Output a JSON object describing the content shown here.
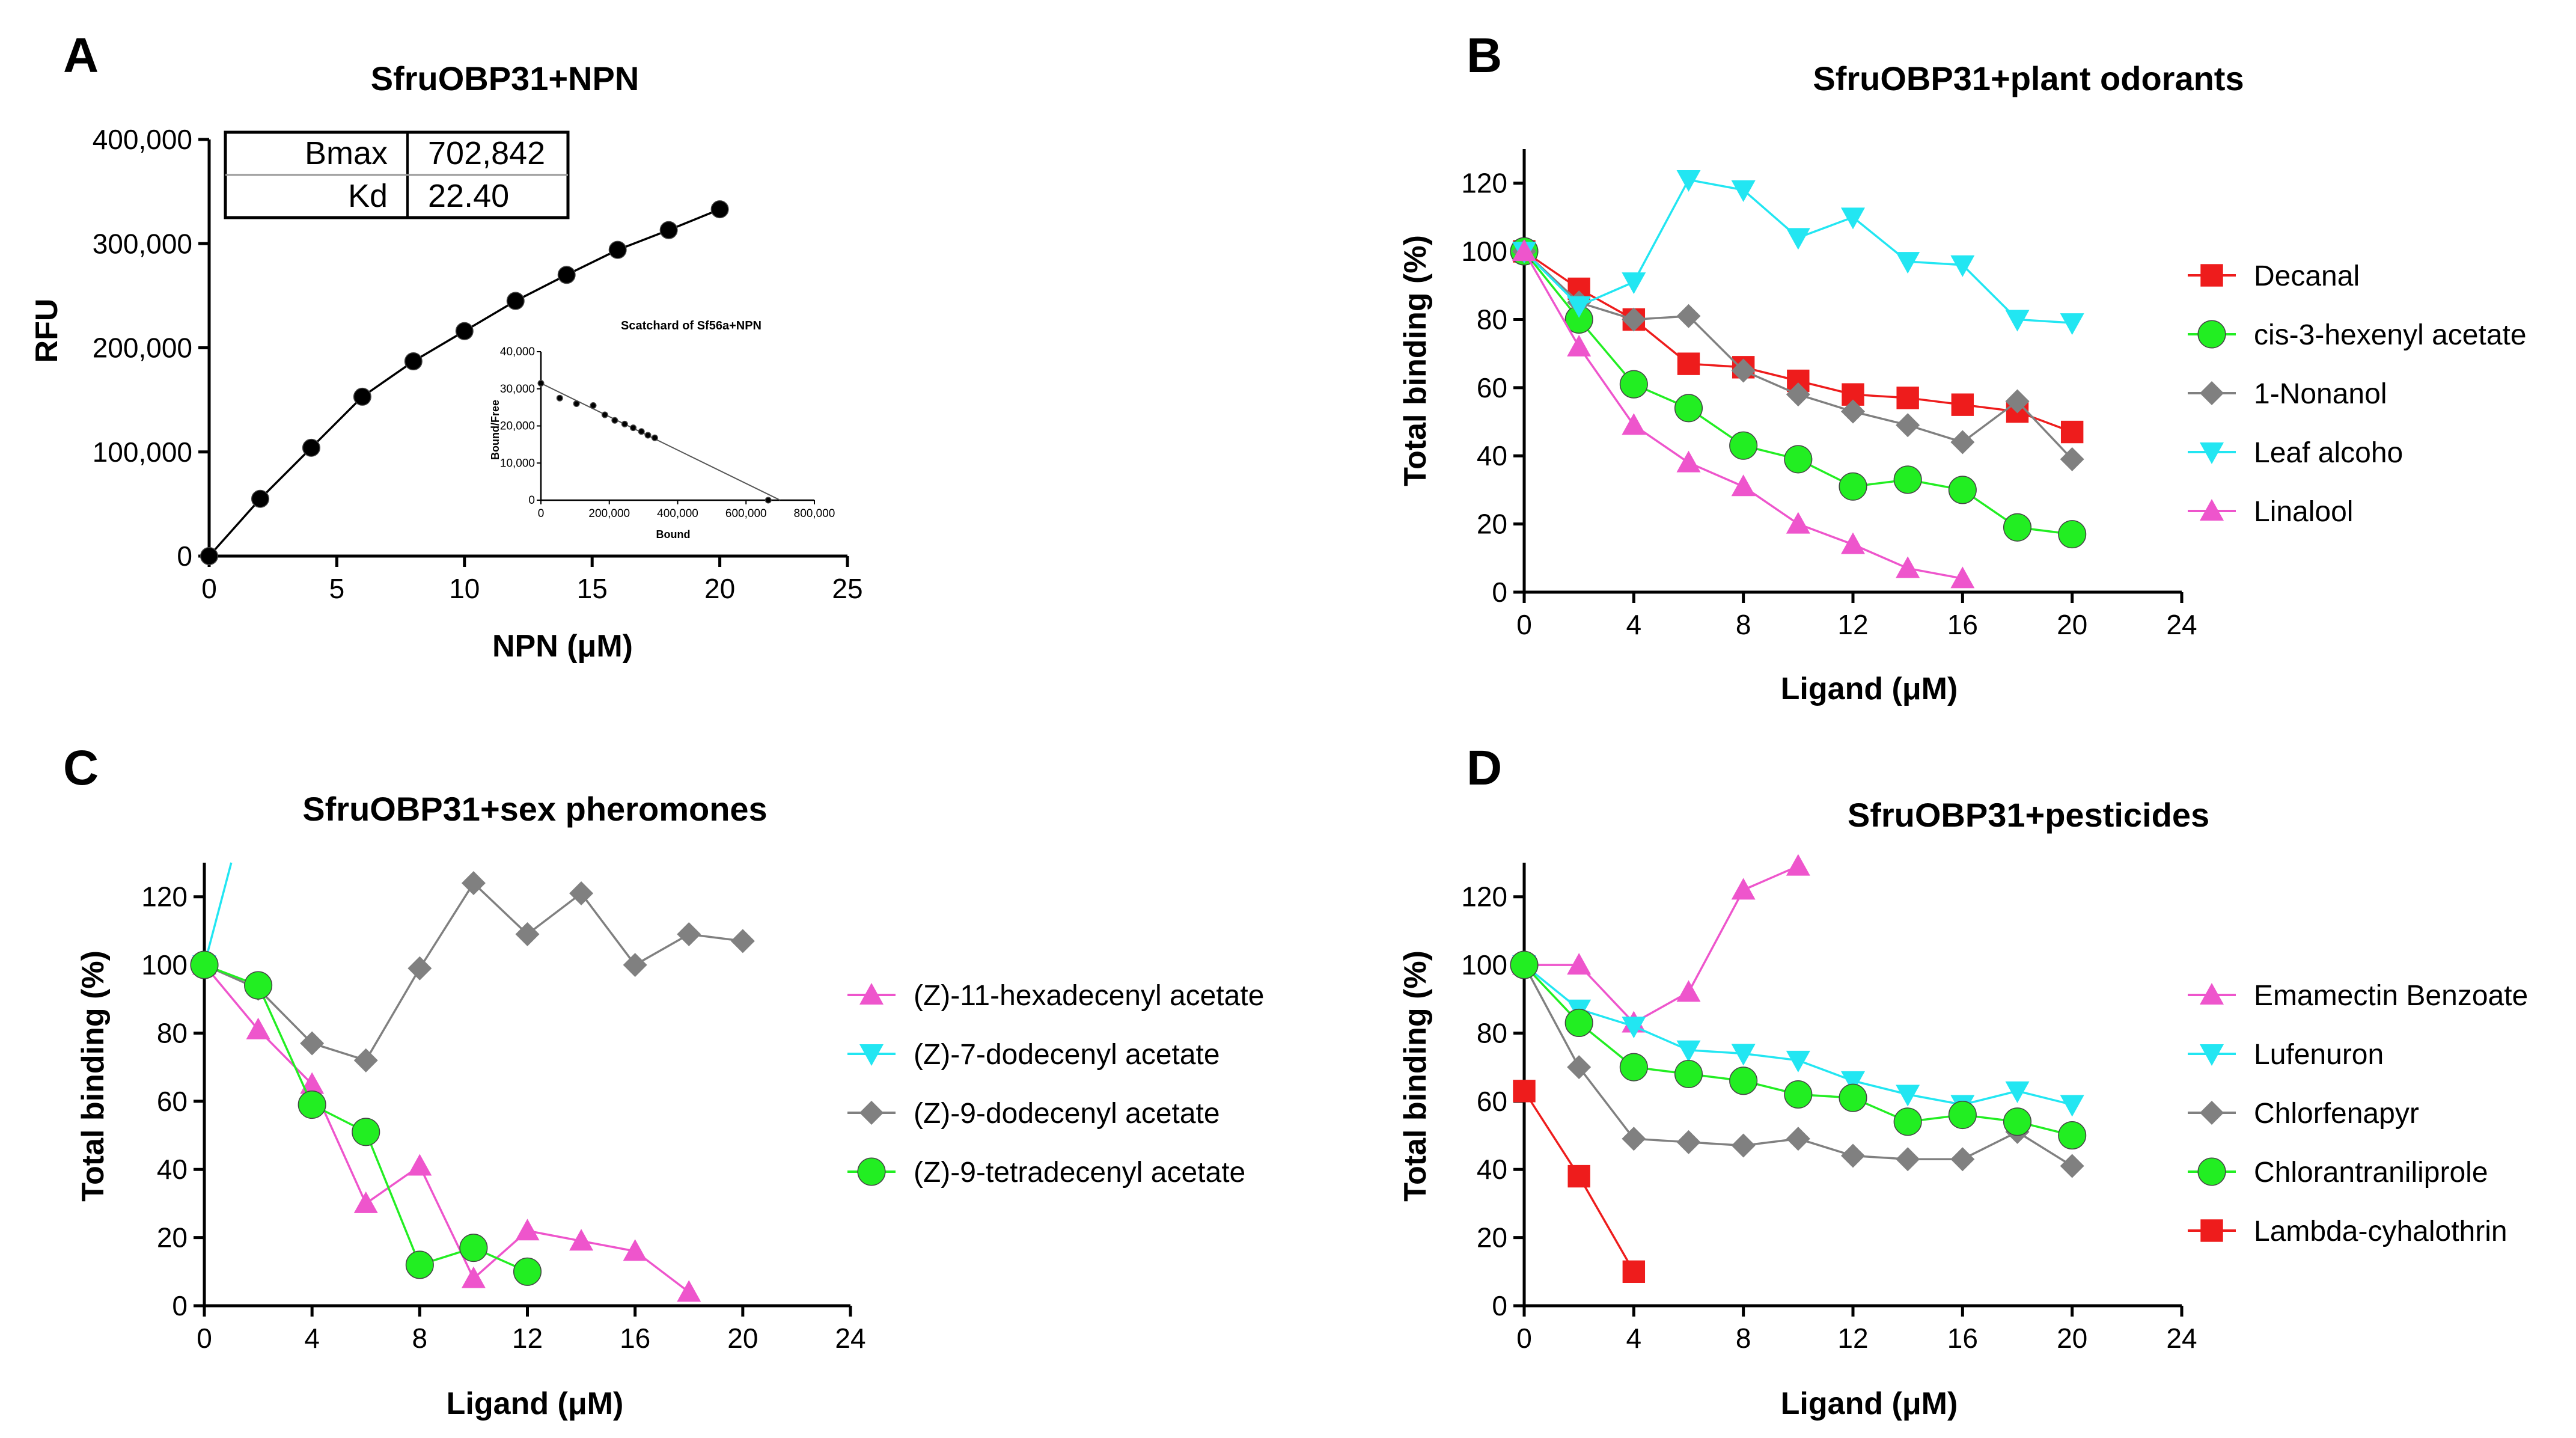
{
  "chart_data": [
    {
      "panel": "A",
      "type": "scatter",
      "title": "SfruOBP31+NPN",
      "xlabel": "NPN (μM)",
      "ylabel": "RFU",
      "xlim": [
        0,
        25
      ],
      "ylim": [
        0,
        400000
      ],
      "xticks": [
        0,
        5,
        10,
        15,
        20,
        25
      ],
      "yticks": [
        0,
        100000,
        200000,
        300000,
        400000
      ],
      "xtick_labels": [
        "0",
        "5",
        "10",
        "15",
        "20",
        "25"
      ],
      "ytick_labels": [
        "0",
        "100,000",
        "200,000",
        "300,000",
        "400,000"
      ],
      "x": [
        0,
        2,
        4,
        6,
        8,
        10,
        12,
        14,
        16,
        18,
        20
      ],
      "y": [
        0,
        55000,
        104000,
        153000,
        187000,
        216000,
        245000,
        270000,
        294000,
        313000,
        333000
      ],
      "fit_table": [
        {
          "label": "Bmax",
          "value": "702,842"
        },
        {
          "label": "Kd",
          "value": "22.40"
        }
      ],
      "inset": {
        "type": "scatter",
        "title": "Scatchard of Sf56a+NPN",
        "xlabel": "Bound",
        "ylabel": "Bound/Free",
        "xlim": [
          0,
          800000
        ],
        "ylim": [
          0,
          40000
        ],
        "xtick_labels": [
          "0",
          "200,000",
          "400,000",
          "600,000",
          "800,000"
        ],
        "ytick_labels": [
          "0",
          "10,000",
          "20,000",
          "30,000",
          "40,000"
        ],
        "x": [
          0,
          55000,
          104000,
          153000,
          187000,
          216000,
          245000,
          270000,
          294000,
          313000,
          333000,
          665000
        ],
        "y": [
          31500,
          27500,
          26000,
          25500,
          23000,
          21500,
          20500,
          19500,
          18500,
          17500,
          16800,
          0
        ],
        "line": {
          "x": [
            0,
            700000
          ],
          "y": [
            31500,
            0
          ]
        }
      }
    },
    {
      "panel": "B",
      "type": "line",
      "title": "SfruOBP31+plant odorants",
      "xlabel": "Ligand (μM)",
      "ylabel": "Total binding (%)",
      "xlim": [
        0,
        24
      ],
      "ylim": [
        0,
        130
      ],
      "xticks": [
        0,
        4,
        8,
        12,
        16,
        20,
        24
      ],
      "yticks": [
        0,
        20,
        40,
        60,
        80,
        100,
        120
      ],
      "xtick_labels": [
        "0",
        "4",
        "8",
        "12",
        "16",
        "20",
        "24"
      ],
      "ytick_labels": [
        "0",
        "20",
        "40",
        "60",
        "80",
        "100",
        "120"
      ],
      "series": [
        {
          "name": "Decanal",
          "color": "#ee1c1c",
          "marker": "square",
          "x": [
            0,
            2,
            4,
            6,
            8,
            10,
            12,
            14,
            16,
            18,
            20
          ],
          "y": [
            100,
            89,
            80,
            67,
            66,
            62,
            58,
            57,
            55,
            53,
            47
          ]
        },
        {
          "name": "cis-3-hexenyl acetate",
          "color": "#22ee22",
          "marker": "circle",
          "x": [
            0,
            2,
            4,
            6,
            8,
            10,
            12,
            14,
            16,
            18,
            20
          ],
          "y": [
            100,
            80,
            61,
            54,
            43,
            39,
            31,
            33,
            30,
            19,
            17
          ]
        },
        {
          "name": "1-Nonanol",
          "color": "#808080",
          "marker": "diamond",
          "x": [
            0,
            2,
            4,
            6,
            8,
            10,
            12,
            14,
            16,
            18,
            20
          ],
          "y": [
            100,
            85,
            80,
            81,
            65,
            58,
            53,
            49,
            44,
            56,
            39
          ]
        },
        {
          "name": "Leaf alcoho",
          "color": "#22e6f2",
          "marker": "triangle-down",
          "x": [
            0,
            2,
            4,
            6,
            8,
            10,
            12,
            14,
            16,
            18,
            20
          ],
          "y": [
            100,
            84,
            91,
            121,
            118,
            104,
            110,
            97,
            96,
            80,
            79
          ]
        },
        {
          "name": "Linalool",
          "color": "#ee55cc",
          "marker": "triangle-up",
          "x": [
            0,
            2,
            4,
            6,
            8,
            10,
            12,
            14,
            16
          ],
          "y": [
            100,
            72,
            49,
            38,
            31,
            20,
            14,
            7,
            4
          ]
        }
      ]
    },
    {
      "panel": "C",
      "type": "line",
      "title": "SfruOBP31+sex pheromones",
      "xlabel": "Ligand (μM)",
      "ylabel": "Total binding (%)",
      "xlim": [
        0,
        24
      ],
      "ylim": [
        0,
        130
      ],
      "xticks": [
        0,
        4,
        8,
        12,
        16,
        20,
        24
      ],
      "yticks": [
        0,
        20,
        40,
        60,
        80,
        100,
        120
      ],
      "xtick_labels": [
        "0",
        "4",
        "8",
        "12",
        "16",
        "20",
        "24"
      ],
      "ytick_labels": [
        "0",
        "20",
        "40",
        "60",
        "80",
        "100",
        "120"
      ],
      "series": [
        {
          "name": "(Z)-11-hexadecenyl acetate",
          "color": "#ee55cc",
          "marker": "triangle-up",
          "x": [
            0,
            2,
            4,
            6,
            8,
            10,
            12,
            14,
            16,
            18
          ],
          "y": [
            100,
            81,
            65,
            30,
            41,
            8,
            22,
            19,
            16,
            4
          ]
        },
        {
          "name": "(Z)-7-dodecenyl acetate",
          "color": "#22e6f2",
          "marker": "triangle-down",
          "x": [
            0,
            1
          ],
          "y": [
            100,
            130
          ]
        },
        {
          "name": "(Z)-9-dodecenyl acetate",
          "color": "#808080",
          "marker": "diamond",
          "x": [
            0,
            2,
            4,
            6,
            8,
            10,
            12,
            14,
            16,
            18,
            20
          ],
          "y": [
            100,
            93,
            77,
            72,
            99,
            124,
            109,
            121,
            100,
            109,
            107
          ]
        },
        {
          "name": "(Z)-9-tetradecenyl acetate",
          "color": "#22ee22",
          "marker": "circle",
          "x": [
            0,
            2,
            4,
            6,
            8,
            10,
            12
          ],
          "y": [
            100,
            94,
            59,
            51,
            12,
            17,
            10
          ]
        }
      ]
    },
    {
      "panel": "D",
      "type": "line",
      "title": "SfruOBP31+pesticides",
      "xlabel": "Ligand (μM)",
      "ylabel": "Total binding (%)",
      "xlim": [
        0,
        24
      ],
      "ylim": [
        0,
        130
      ],
      "xticks": [
        0,
        4,
        8,
        12,
        16,
        20,
        24
      ],
      "yticks": [
        0,
        20,
        40,
        60,
        80,
        100,
        120
      ],
      "xtick_labels": [
        "0",
        "4",
        "8",
        "12",
        "16",
        "20",
        "24"
      ],
      "ytick_labels": [
        "0",
        "20",
        "40",
        "60",
        "80",
        "100",
        "120"
      ],
      "series": [
        {
          "name": "Emamectin Benzoate",
          "color": "#ee55cc",
          "marker": "triangle-up",
          "x": [
            0,
            2,
            4,
            6,
            8,
            10
          ],
          "y": [
            100,
            100,
            83,
            92,
            122,
            129
          ]
        },
        {
          "name": "Lufenuron",
          "color": "#22e6f2",
          "marker": "triangle-down",
          "x": [
            0,
            2,
            4,
            6,
            8,
            10,
            12,
            14,
            16,
            18,
            20
          ],
          "y": [
            100,
            87,
            82,
            75,
            74,
            72,
            66,
            62,
            59,
            63,
            59
          ]
        },
        {
          "name": "Chlorfenapyr",
          "color": "#808080",
          "marker": "diamond",
          "x": [
            0,
            2,
            4,
            6,
            8,
            10,
            12,
            14,
            16,
            18,
            20
          ],
          "y": [
            100,
            70,
            49,
            48,
            47,
            49,
            44,
            43,
            43,
            51,
            41
          ]
        },
        {
          "name": "Chlorantraniliprole",
          "color": "#22ee22",
          "marker": "circle",
          "x": [
            0,
            2,
            4,
            6,
            8,
            10,
            12,
            14,
            16,
            18,
            20
          ],
          "y": [
            100,
            83,
            70,
            68,
            66,
            62,
            61,
            54,
            56,
            54,
            50
          ]
        },
        {
          "name": "Lambda-cyhalothrin",
          "color": "#ee1c1c",
          "marker": "square",
          "x": [
            0,
            2,
            4
          ],
          "y": [
            63,
            38,
            10
          ]
        }
      ]
    }
  ]
}
